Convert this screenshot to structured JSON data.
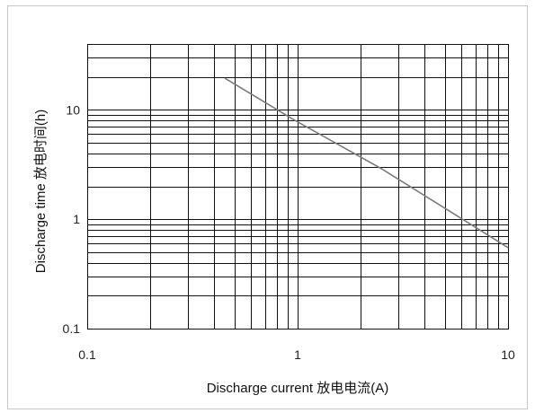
{
  "chart_data": {
    "type": "line",
    "xlabel": "Discharge current  放电电流(A)",
    "ylabel": "Discharge time 放电时间(h)",
    "x_scale": "log",
    "y_scale": "log",
    "xlim": [
      0.1,
      10
    ],
    "ylim": [
      0.1,
      40
    ],
    "x_ticks": [
      {
        "value": 0.1,
        "label": "0.1"
      },
      {
        "value": 1,
        "label": "1"
      },
      {
        "value": 10,
        "label": "10"
      }
    ],
    "y_ticks": [
      {
        "value": 0.1,
        "label": "0.1"
      },
      {
        "value": 1,
        "label": "1"
      },
      {
        "value": 10,
        "label": "10"
      }
    ],
    "grid": true,
    "series": [
      {
        "color": "#7a7a7a",
        "x": [
          0.45,
          0.95,
          2.5,
          10
        ],
        "y": [
          19.5,
          8.2,
          2.9,
          0.55
        ]
      }
    ]
  }
}
